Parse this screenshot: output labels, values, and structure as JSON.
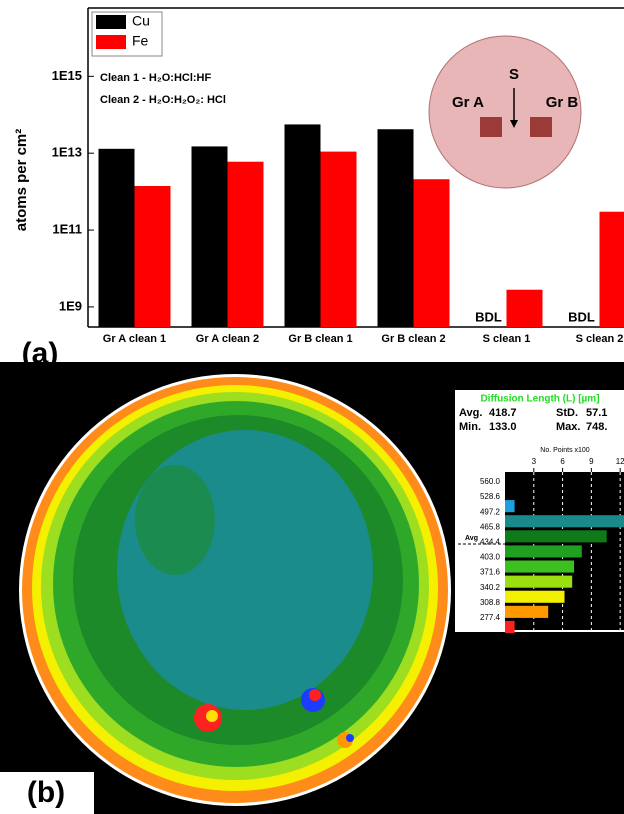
{
  "chart_data": [
    {
      "type": "bar",
      "log_scale": true,
      "ylabel": "atoms per cm²",
      "panel_label": "(a)",
      "annotations": [
        "Clean 1 - H₂O:HCl:HF",
        "Clean 2 - H₂O:H₂O₂: HCl"
      ],
      "inset_labels": [
        "S",
        "Gr A",
        "Gr B"
      ],
      "categories": [
        "Gr A clean 1",
        "Gr A clean 2",
        "Gr B clean 1",
        "Gr B clean 2",
        "S clean 1",
        "S clean 2"
      ],
      "series": [
        {
          "name": "Cu",
          "color": "#000000",
          "values": [
            13000000000000.0,
            15000000000000.0,
            56000000000000.0,
            42000000000000.0,
            null,
            null
          ],
          "value_labels": [
            null,
            null,
            null,
            null,
            "BDL",
            "BDL"
          ]
        },
        {
          "name": "Fe",
          "color": "#ff0000",
          "values": [
            1400000000000.0,
            6000000000000.0,
            11000000000000.0,
            2100000000000.0,
            2800000000.0,
            300000000000.0
          ]
        }
      ],
      "ylim": [
        300000000.0,
        6e+16
      ],
      "yticks": [
        {
          "value": 1000000000.0,
          "label": "1E9"
        },
        {
          "value": 100000000000.0,
          "label": "1E11"
        },
        {
          "value": 10000000000000.0,
          "label": "1E13"
        },
        {
          "value": 1000000000000000.0,
          "label": "1E15"
        }
      ],
      "legend": "top-left"
    },
    {
      "type": "hbar",
      "title": "Diffusion Length (L) [µm]",
      "panel_label": "(b)",
      "stats": [
        [
          "Avg.",
          "418.7"
        ],
        [
          "StD.",
          "57.1"
        ],
        [
          "Min.",
          "133.0"
        ],
        [
          "Max.",
          "748."
        ]
      ],
      "xlabel": "No. Points x100",
      "avg_label": "Avg",
      "categories": [
        "560.0",
        "528.6",
        "497.2",
        "465.8",
        "434.4",
        "403.0",
        "371.6",
        "340.2",
        "308.8",
        "277.4"
      ],
      "values": [
        0,
        1,
        13.5,
        10.6,
        8,
        7.2,
        7,
        6.2,
        4.5,
        1
      ],
      "colors": [
        "#1e90ff",
        "#1e9fe0",
        "#1a8a8a",
        "#0f7a1a",
        "#1fa020",
        "#3cc020",
        "#9adf10",
        "#f0f000",
        "#ff9900",
        "#ff2020"
      ],
      "xlim": [
        0,
        12.4
      ],
      "xticks": [
        3,
        6,
        9,
        12
      ],
      "grid": true
    }
  ]
}
